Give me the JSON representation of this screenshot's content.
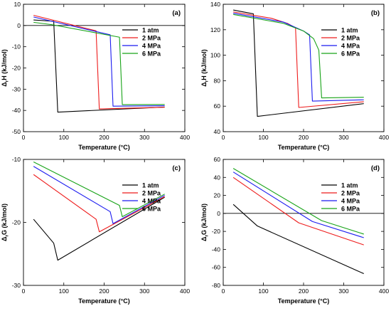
{
  "chart_data": [
    {
      "type": "line",
      "panel_label": "(a)",
      "xlabel": "Temperature (°C)",
      "ylabel_main": "Δ",
      "ylabel_sub": "r",
      "ylabel_rest": "H (kJ/mol)",
      "xlim": [
        0,
        400
      ],
      "ylim": [
        -50,
        10
      ],
      "xticks": [
        0,
        100,
        200,
        300,
        400
      ],
      "yticks": [
        -50,
        -40,
        -30,
        -20,
        -10,
        0,
        10
      ],
      "hline": 0,
      "legend": "top-right",
      "series": [
        {
          "name": "1 atm",
          "color": "#000000",
          "x": [
            25,
            75,
            85,
            350
          ],
          "y": [
            2.6,
            2.0,
            -40.8,
            -38.4
          ]
        },
        {
          "name": "2 MPa",
          "color": "#ee1c1c",
          "x": [
            25,
            180,
            188,
            350
          ],
          "y": [
            4.8,
            -2.5,
            -39.3,
            -38.5
          ]
        },
        {
          "name": "4 MPa",
          "color": "#1b1bf0",
          "x": [
            25,
            215,
            222,
            350
          ],
          "y": [
            4.0,
            -4.4,
            -38.0,
            -37.8
          ]
        },
        {
          "name": "6 MPa",
          "color": "#17a317",
          "x": [
            25,
            70,
            238,
            245,
            350
          ],
          "y": [
            1.5,
            0.4,
            -5.5,
            -37.3,
            -37.2
          ]
        }
      ]
    },
    {
      "type": "line",
      "panel_label": "(b)",
      "xlabel": "Temperature (°C)",
      "ylabel_main": "Δ",
      "ylabel_sub": "r",
      "ylabel_rest": "H (kJ/mol)",
      "xlim": [
        0,
        400
      ],
      "ylim": [
        40,
        140
      ],
      "xticks": [
        0,
        100,
        200,
        300,
        400
      ],
      "yticks": [
        40,
        60,
        80,
        100,
        120,
        140
      ],
      "legend": "top-right",
      "series": [
        {
          "name": "1 atm",
          "color": "#000000",
          "x": [
            25,
            75,
            85,
            350
          ],
          "y": [
            135.5,
            132.5,
            52.0,
            62.0
          ]
        },
        {
          "name": "2 MPa",
          "color": "#ee1c1c",
          "x": [
            25,
            120,
            160,
            180,
            188,
            350
          ],
          "y": [
            134.0,
            129.0,
            125.0,
            121.5,
            59.0,
            63.5
          ]
        },
        {
          "name": "4 MPa",
          "color": "#1b1bf0",
          "x": [
            25,
            150,
            200,
            215,
            222,
            350
          ],
          "y": [
            133.0,
            126.0,
            119.0,
            116.0,
            64.0,
            65.0
          ]
        },
        {
          "name": "6 MPa",
          "color": "#17a317",
          "x": [
            25,
            150,
            200,
            225,
            238,
            245,
            350
          ],
          "y": [
            132.0,
            125.0,
            119.0,
            113.0,
            104.0,
            66.5,
            67.0
          ]
        }
      ]
    },
    {
      "type": "line",
      "panel_label": "(c)",
      "xlabel": "Temperature (°C)",
      "ylabel_main": "Δ",
      "ylabel_sub": "r",
      "ylabel_rest": "G (kJ/mol)",
      "xlim": [
        0,
        400
      ],
      "ylim": [
        -30,
        -10
      ],
      "xticks": [
        0,
        100,
        200,
        300,
        400
      ],
      "yticks": [
        -30,
        -20,
        -10
      ],
      "legend": "top-right",
      "series": [
        {
          "name": "1 atm",
          "color": "#000000",
          "x": [
            25,
            75,
            85,
            350
          ],
          "y": [
            -19.5,
            -23.3,
            -26.0,
            -16.0
          ]
        },
        {
          "name": "2 MPa",
          "color": "#ee1c1c",
          "x": [
            25,
            180,
            188,
            350
          ],
          "y": [
            -12.4,
            -19.5,
            -21.5,
            -15.9
          ]
        },
        {
          "name": "4 MPa",
          "color": "#1b1bf0",
          "x": [
            25,
            215,
            222,
            350
          ],
          "y": [
            -11.1,
            -18.3,
            -20.2,
            -15.7
          ]
        },
        {
          "name": "6 MPa",
          "color": "#17a317",
          "x": [
            25,
            238,
            245,
            350
          ],
          "y": [
            -10.4,
            -17.3,
            -19.1,
            -15.5
          ]
        }
      ]
    },
    {
      "type": "line",
      "panel_label": "(d)",
      "xlabel": "Temperature (°C)",
      "ylabel_main": "Δ",
      "ylabel_sub": "r",
      "ylabel_rest": "G (kJ/mol)",
      "xlim": [
        0,
        400
      ],
      "ylim": [
        -80,
        60
      ],
      "xticks": [
        0,
        100,
        200,
        300,
        400
      ],
      "yticks": [
        -80,
        -60,
        -40,
        -20,
        0,
        20,
        40,
        60
      ],
      "hline": 0,
      "legend": "top-right",
      "series": [
        {
          "name": "1 atm",
          "color": "#000000",
          "x": [
            25,
            85,
            350
          ],
          "y": [
            10,
            -14,
            -67
          ]
        },
        {
          "name": "2 MPa",
          "color": "#ee1c1c",
          "x": [
            25,
            188,
            350
          ],
          "y": [
            40,
            -10.5,
            -35
          ]
        },
        {
          "name": "4 MPa",
          "color": "#1b1bf0",
          "x": [
            25,
            222,
            350
          ],
          "y": [
            46,
            -9,
            -27
          ]
        },
        {
          "name": "6 MPa",
          "color": "#17a317",
          "x": [
            25,
            245,
            350
          ],
          "y": [
            50,
            -8,
            -23
          ]
        }
      ]
    }
  ]
}
